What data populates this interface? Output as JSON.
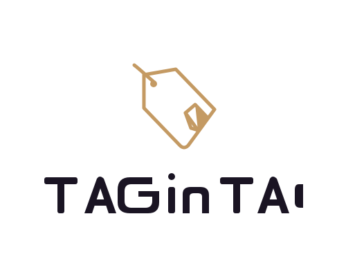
{
  "logo": {
    "wordmark_text": "TAG in TAG",
    "icon": "price-tag-icon",
    "colors": {
      "tag": "#c49a63",
      "text": "#1a1423",
      "background": "#ffffff"
    }
  }
}
